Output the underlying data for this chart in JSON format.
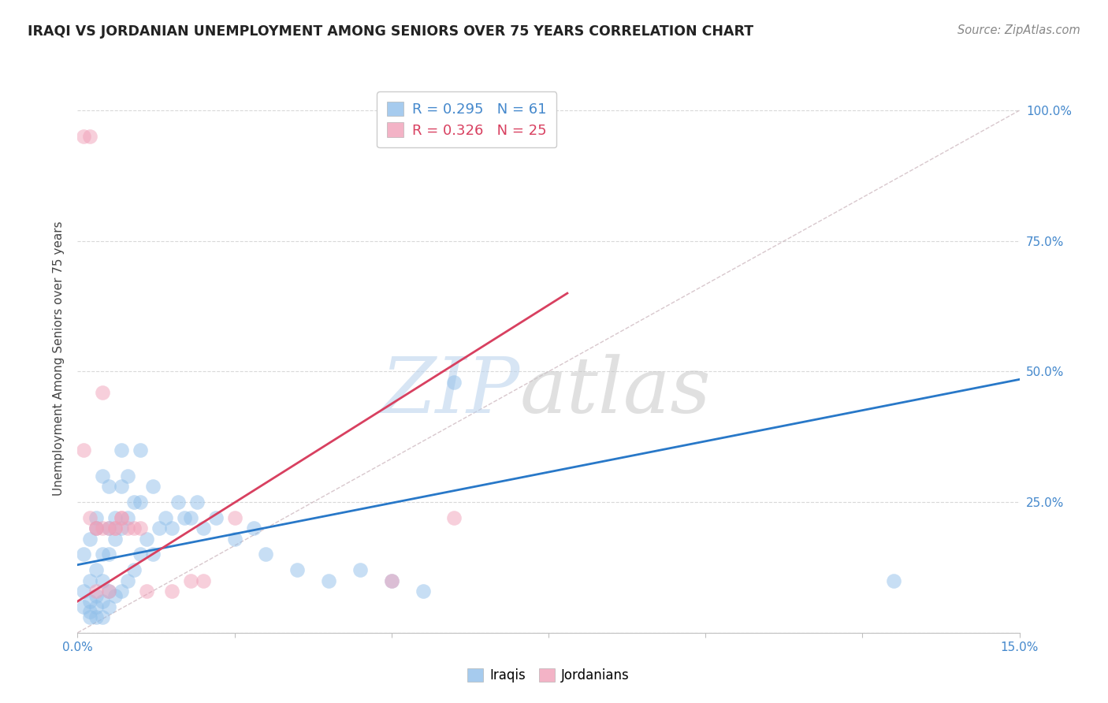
{
  "title": "IRAQI VS JORDANIAN UNEMPLOYMENT AMONG SENIORS OVER 75 YEARS CORRELATION CHART",
  "source": "Source: ZipAtlas.com",
  "ylabel": "Unemployment Among Seniors over 75 years",
  "xlim": [
    0.0,
    0.15
  ],
  "ylim": [
    0.0,
    1.05
  ],
  "xticks": [
    0.0,
    0.025,
    0.05,
    0.075,
    0.1,
    0.125,
    0.15
  ],
  "xticklabels": [
    "0.0%",
    "",
    "",
    "",
    "",
    "",
    "15.0%"
  ],
  "yticks": [
    0.0,
    0.25,
    0.5,
    0.75,
    1.0
  ],
  "yticklabels_right": [
    "",
    "25.0%",
    "50.0%",
    "75.0%",
    "100.0%"
  ],
  "iraqis_x": [
    0.001,
    0.001,
    0.001,
    0.002,
    0.002,
    0.002,
    0.002,
    0.003,
    0.003,
    0.003,
    0.003,
    0.003,
    0.004,
    0.004,
    0.004,
    0.004,
    0.005,
    0.005,
    0.005,
    0.005,
    0.005,
    0.006,
    0.006,
    0.006,
    0.007,
    0.007,
    0.007,
    0.007,
    0.008,
    0.008,
    0.008,
    0.009,
    0.009,
    0.01,
    0.01,
    0.01,
    0.011,
    0.012,
    0.012,
    0.013,
    0.014,
    0.015,
    0.016,
    0.017,
    0.018,
    0.019,
    0.02,
    0.022,
    0.025,
    0.028,
    0.03,
    0.035,
    0.04,
    0.045,
    0.05,
    0.055,
    0.06,
    0.002,
    0.003,
    0.004,
    0.13
  ],
  "iraqis_y": [
    0.05,
    0.08,
    0.15,
    0.04,
    0.06,
    0.1,
    0.18,
    0.05,
    0.07,
    0.12,
    0.2,
    0.22,
    0.06,
    0.1,
    0.15,
    0.3,
    0.05,
    0.08,
    0.15,
    0.2,
    0.28,
    0.07,
    0.18,
    0.22,
    0.08,
    0.2,
    0.28,
    0.35,
    0.1,
    0.22,
    0.3,
    0.12,
    0.25,
    0.15,
    0.25,
    0.35,
    0.18,
    0.15,
    0.28,
    0.2,
    0.22,
    0.2,
    0.25,
    0.22,
    0.22,
    0.25,
    0.2,
    0.22,
    0.18,
    0.2,
    0.15,
    0.12,
    0.1,
    0.12,
    0.1,
    0.08,
    0.48,
    0.03,
    0.03,
    0.03,
    0.1
  ],
  "jordanians_x": [
    0.001,
    0.001,
    0.002,
    0.002,
    0.003,
    0.003,
    0.003,
    0.004,
    0.004,
    0.005,
    0.005,
    0.006,
    0.006,
    0.007,
    0.007,
    0.008,
    0.009,
    0.01,
    0.011,
    0.015,
    0.018,
    0.02,
    0.025,
    0.05,
    0.06
  ],
  "jordanians_y": [
    0.95,
    0.35,
    0.95,
    0.22,
    0.2,
    0.2,
    0.08,
    0.2,
    0.46,
    0.2,
    0.08,
    0.2,
    0.2,
    0.22,
    0.22,
    0.2,
    0.2,
    0.2,
    0.08,
    0.08,
    0.1,
    0.1,
    0.22,
    0.1,
    0.22
  ],
  "iraqis_color": "#90BFEA",
  "jordanians_color": "#F0A0B8",
  "iraqis_line_color": "#2878C8",
  "jordanians_line_color": "#D84060",
  "diagonal_color": "#C8B0B8",
  "legend_R_iraqis": "R = 0.295",
  "legend_N_iraqis": "N = 61",
  "legend_R_jordanians": "R = 0.326",
  "legend_N_jordanians": "N = 25",
  "watermark_zip": "ZIP",
  "watermark_atlas": "atlas",
  "background_color": "#FFFFFF",
  "iraqis_line_x": [
    0.0,
    0.15
  ],
  "iraqis_line_y": [
    0.13,
    0.485
  ],
  "jordanians_line_x": [
    0.0,
    0.078
  ],
  "jordanians_line_y": [
    0.06,
    0.65
  ]
}
